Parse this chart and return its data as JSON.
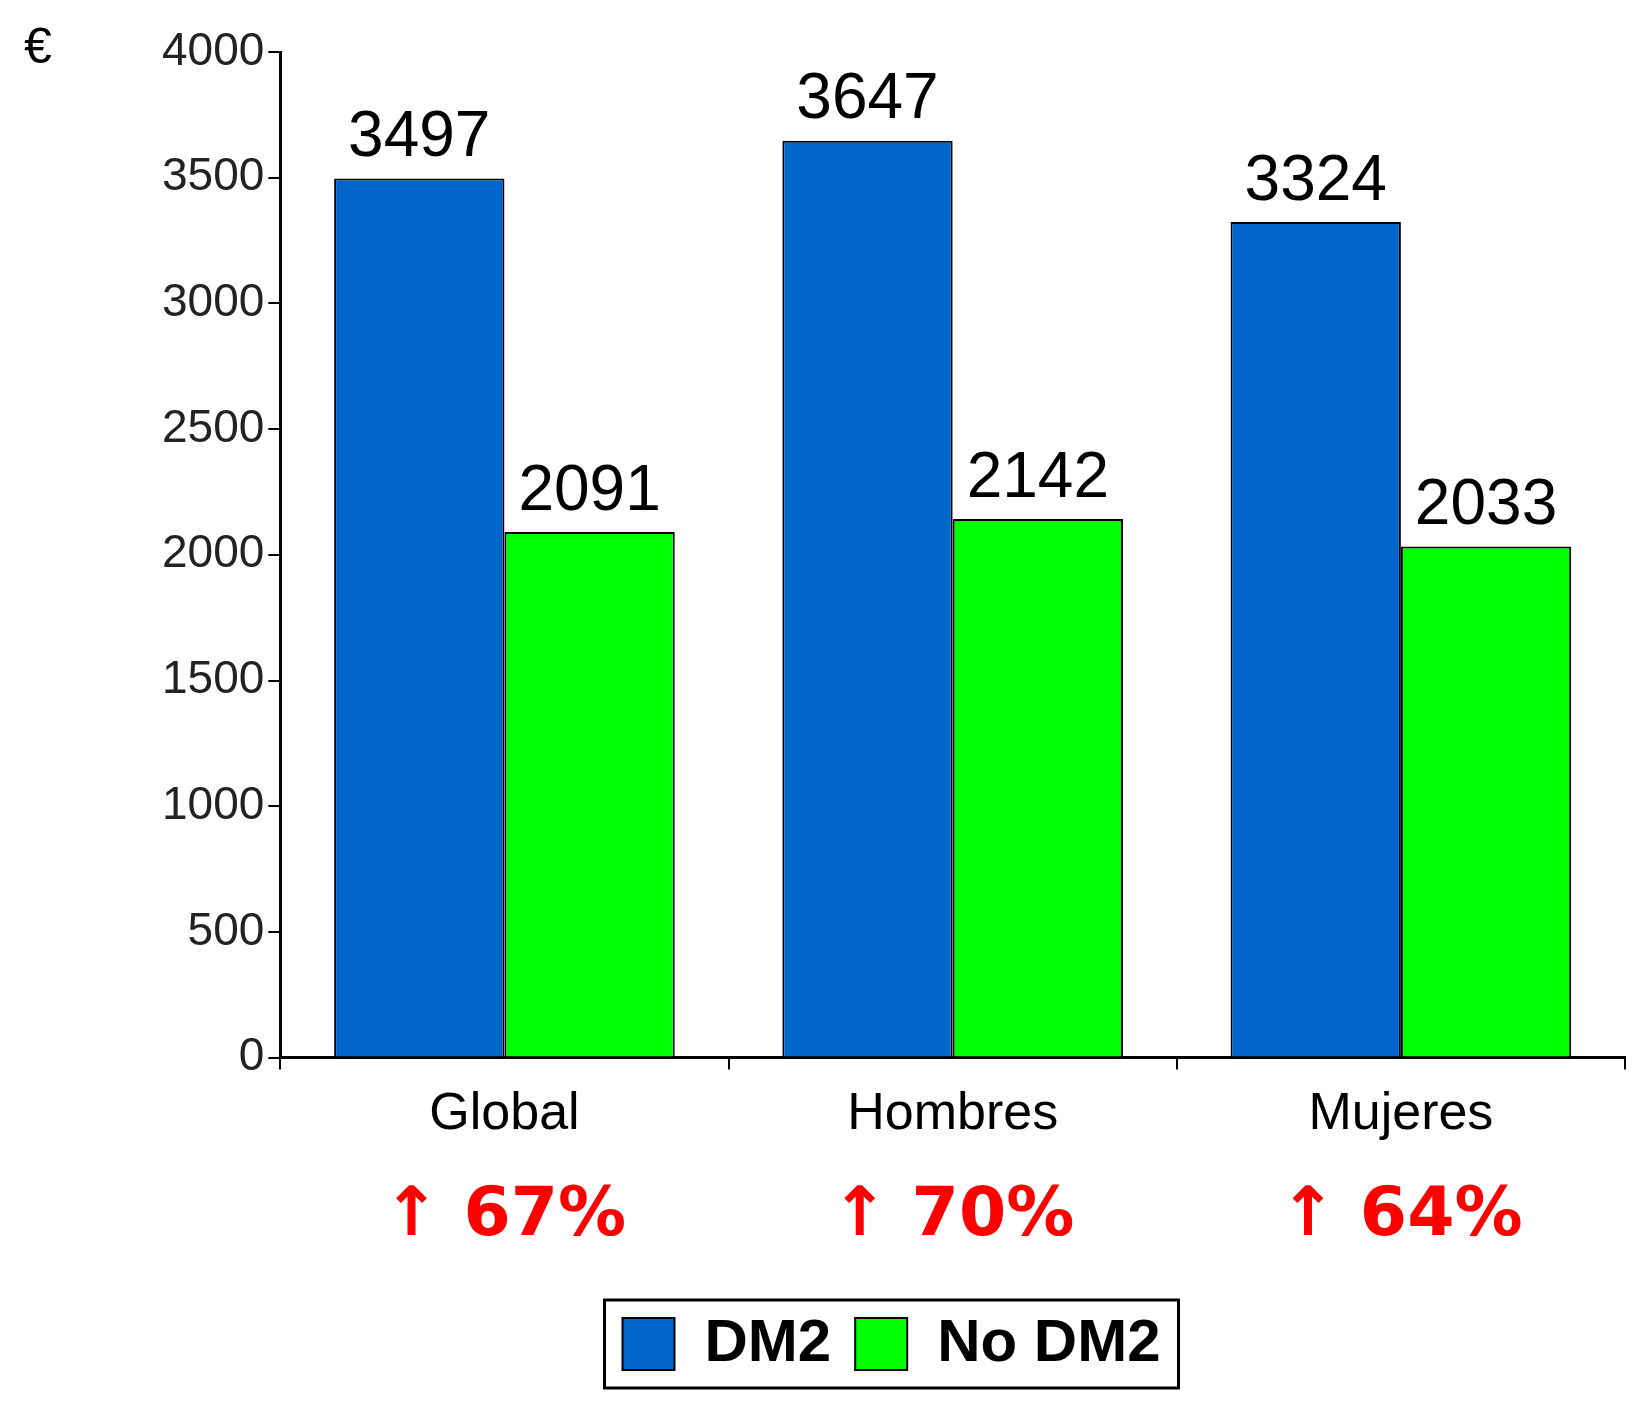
{
  "chart_data": {
    "type": "bar",
    "ylabel": "€",
    "categories": [
      "Global",
      "Hombres",
      "Mujeres"
    ],
    "series": [
      {
        "name": "DM2",
        "color": "#0066cc",
        "values": [
          3497,
          3647,
          3324
        ]
      },
      {
        "name": "No DM2",
        "color": "#00ff00",
        "values": [
          2091,
          2142,
          2033
        ]
      }
    ],
    "ylim": [
      0,
      4000
    ],
    "yticks": [
      0,
      500,
      1000,
      1500,
      2000,
      2500,
      3000,
      3500,
      4000
    ],
    "data_labels": true,
    "legend": "bottom",
    "annotations": [
      "↑ 67%",
      "↑ 70%",
      "↑ 64%"
    ]
  }
}
